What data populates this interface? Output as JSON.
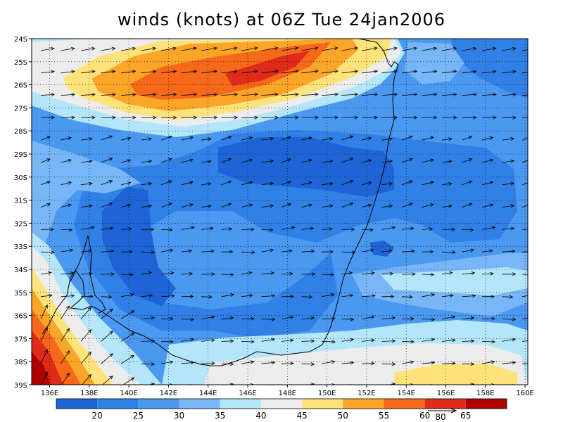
{
  "map": {
    "title": "winds (knots) at 06Z Tue 24jan2006",
    "lat_labels": [
      "24S",
      "25S",
      "26S",
      "27S",
      "28S",
      "29S",
      "30S",
      "31S",
      "32S",
      "33S",
      "34S",
      "35S",
      "36S",
      "37S",
      "38S",
      "39S"
    ],
    "lon_labels": [
      "136E",
      "138E",
      "140E",
      "142E",
      "144E",
      "146E",
      "148E",
      "150E",
      "152E",
      "154E",
      "156E",
      "158E",
      "160E"
    ],
    "colorbar": {
      "levels": [
        "20",
        "25",
        "30",
        "35",
        "40",
        "45",
        "50",
        "55",
        "60",
        "65"
      ],
      "colors": [
        "#1f64d6",
        "#3080e6",
        "#4a98f0",
        "#78b6f8",
        "#b4e6fa",
        "#ececec",
        "#fde37a",
        "#fba628",
        "#f6681a",
        "#e02a1a",
        "#b00000"
      ]
    },
    "reference_vector": {
      "label": "80"
    },
    "palette": {
      "c0": "#1f64d6",
      "c1": "#3080e6",
      "c2": "#4a98f0",
      "c3": "#78b6f8",
      "c4": "#b4e6fa",
      "c5": "#ececec",
      "c6": "#fde37a",
      "c7": "#fba628",
      "c8": "#f6681a",
      "c9": "#e02a1a",
      "c10": "#b00000"
    }
  }
}
